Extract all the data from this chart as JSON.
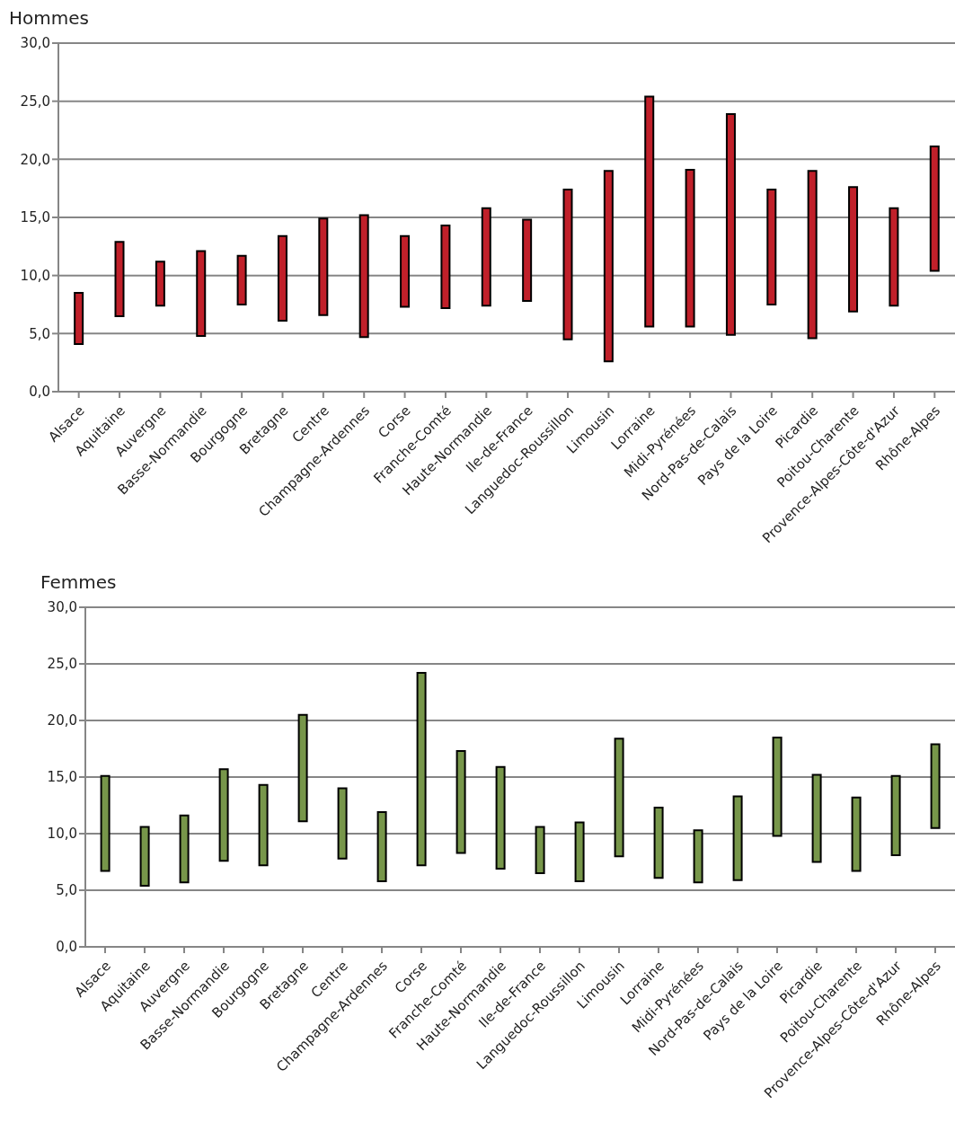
{
  "chart_data": [
    {
      "type": "bar",
      "title": "Hommes",
      "categories": [
        "Alsace",
        "Aquitaine",
        "Auvergne",
        "Basse-Normandie",
        "Bourgogne",
        "Bretagne",
        "Centre",
        "Champagne-Ardennes",
        "Corse",
        "Franche-Comté",
        "Haute-Normandie",
        "Ile-de-France",
        "Languedoc-Roussillon",
        "Limousin",
        "Lorraine",
        "Midi-Pyrénées",
        "Nord-Pas-de-Calais",
        "Pays de la Loire",
        "Picardie",
        "Poitou-Charente",
        "Provence-Alpes-Côte-d'Azur",
        "Rhône-Alpes"
      ],
      "base": [
        4.1,
        6.5,
        7.4,
        4.8,
        7.5,
        6.1,
        6.6,
        4.7,
        7.3,
        7.2,
        7.4,
        7.8,
        4.5,
        2.6,
        5.6,
        5.6,
        4.9,
        7.5,
        4.6,
        6.9,
        7.4,
        10.4
      ],
      "values": [
        4.4,
        6.4,
        3.8,
        7.3,
        4.2,
        7.3,
        8.3,
        10.5,
        6.1,
        7.1,
        8.4,
        7.0,
        12.9,
        16.4,
        19.8,
        13.5,
        19.0,
        9.9,
        14.4,
        10.7,
        8.4,
        10.7
      ],
      "color": "#c0202a",
      "ylim": [
        0,
        30
      ],
      "yticks": [
        {
          "value": 0,
          "label": "0,0"
        },
        {
          "value": 5,
          "label": "5,0"
        },
        {
          "value": 10,
          "label": "10,0"
        },
        {
          "value": 15,
          "label": "15,0"
        },
        {
          "value": 20,
          "label": "20,0"
        },
        {
          "value": 25,
          "label": "25,0"
        },
        {
          "value": 30,
          "label": "30,0"
        }
      ],
      "grid": "y"
    },
    {
      "type": "bar",
      "title": "Femmes",
      "categories": [
        "Alsace",
        "Aquitaine",
        "Auvergne",
        "Basse-Normandie",
        "Bourgogne",
        "Bretagne",
        "Centre",
        "Champagne-Ardennes",
        "Corse",
        "Franche-Comté",
        "Haute-Normandie",
        "Ile-de-France",
        "Languedoc-Roussillon",
        "Limousin",
        "Lorraine",
        "Midi-Pyrénées",
        "Nord-Pas-de-Calais",
        "Pays de la Loire",
        "Picardie",
        "Poitou-Charente",
        "Provence-Alpes-Côte-d'Azur",
        "Rhône-Alpes"
      ],
      "base": [
        6.7,
        5.4,
        5.7,
        7.6,
        7.2,
        11.1,
        7.8,
        5.8,
        7.2,
        8.3,
        6.9,
        6.5,
        5.8,
        8.0,
        6.1,
        5.7,
        5.9,
        9.8,
        7.5,
        6.7,
        8.1,
        10.5
      ],
      "values": [
        8.4,
        5.2,
        5.9,
        8.1,
        7.1,
        9.4,
        6.2,
        6.1,
        17.0,
        9.0,
        9.0,
        4.1,
        5.2,
        10.4,
        6.2,
        4.6,
        7.4,
        8.7,
        7.7,
        6.5,
        7.0,
        7.4
      ],
      "color": "#77964a",
      "ylim": [
        0,
        30
      ],
      "yticks": [
        {
          "value": 0,
          "label": "0,0"
        },
        {
          "value": 5,
          "label": "5,0"
        },
        {
          "value": 10,
          "label": "10,0"
        },
        {
          "value": 15,
          "label": "15,0"
        },
        {
          "value": 20,
          "label": "20,0"
        },
        {
          "value": 25,
          "label": "25,0"
        },
        {
          "value": 30,
          "label": "30,0"
        }
      ],
      "grid": "y"
    }
  ]
}
